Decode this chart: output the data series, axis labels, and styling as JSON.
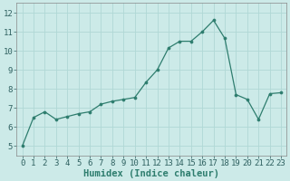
{
  "x": [
    0,
    1,
    2,
    3,
    4,
    5,
    6,
    7,
    8,
    9,
    10,
    11,
    12,
    13,
    14,
    15,
    16,
    17,
    18,
    19,
    20,
    21,
    22,
    23
  ],
  "y": [
    5.0,
    6.5,
    6.8,
    6.4,
    6.55,
    6.7,
    6.8,
    7.2,
    7.35,
    7.45,
    7.55,
    8.35,
    9.0,
    10.15,
    10.5,
    10.5,
    11.0,
    11.6,
    10.65,
    7.7,
    7.45,
    6.4,
    7.75,
    7.8
  ],
  "xlabel": "Humidex (Indice chaleur)",
  "ylim": [
    4.5,
    12.5
  ],
  "xlim": [
    -0.5,
    23.5
  ],
  "yticks": [
    5,
    6,
    7,
    8,
    9,
    10,
    11,
    12
  ],
  "xticks": [
    0,
    1,
    2,
    3,
    4,
    5,
    6,
    7,
    8,
    9,
    10,
    11,
    12,
    13,
    14,
    15,
    16,
    17,
    18,
    19,
    20,
    21,
    22,
    23
  ],
  "line_color": "#2e7d6e",
  "marker_color": "#2e7d6e",
  "bg_color": "#cceae8",
  "grid_color": "#b0d8d5",
  "tick_label_fontsize": 6.5,
  "xlabel_fontsize": 7.5
}
